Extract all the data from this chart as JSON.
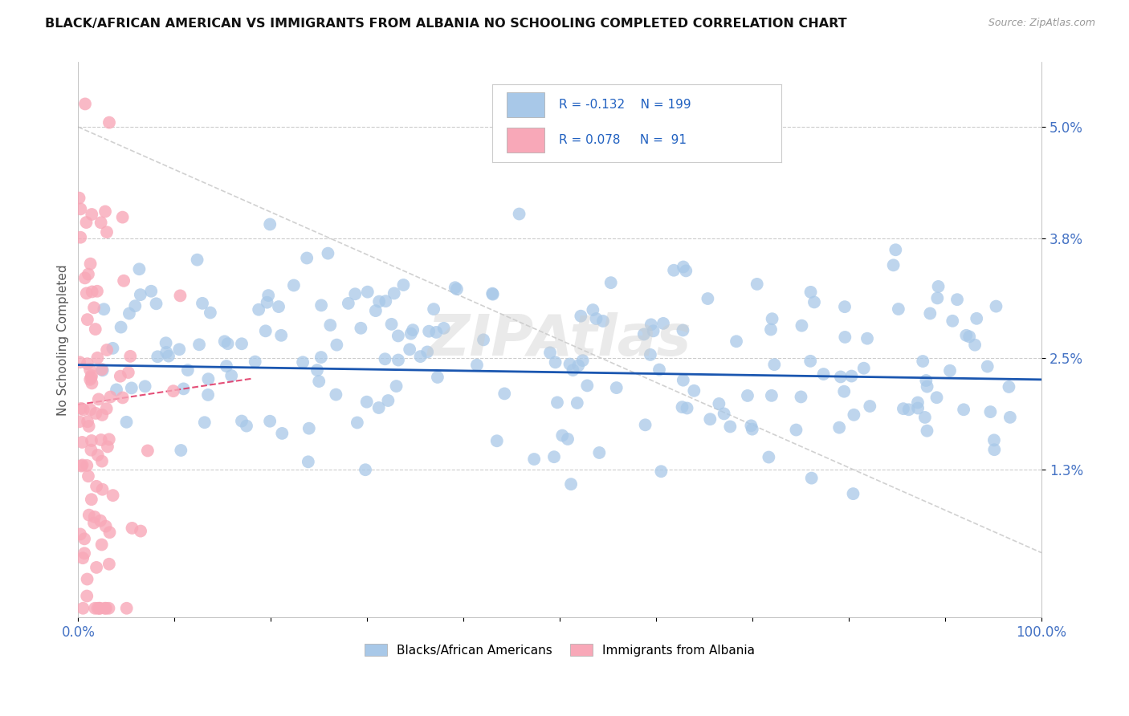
{
  "title": "BLACK/AFRICAN AMERICAN VS IMMIGRANTS FROM ALBANIA NO SCHOOLING COMPLETED CORRELATION CHART",
  "source": "Source: ZipAtlas.com",
  "ylabel": "No Schooling Completed",
  "xlabel": "",
  "xlim": [
    0.0,
    1.0
  ],
  "ylim": [
    -0.003,
    0.057
  ],
  "yticks": [
    0.013,
    0.025,
    0.038,
    0.05
  ],
  "ytick_labels": [
    "1.3%",
    "2.5%",
    "3.8%",
    "5.0%"
  ],
  "xticks": [
    0.0,
    0.1,
    0.2,
    0.3,
    0.4,
    0.5,
    0.6,
    0.7,
    0.8,
    0.9,
    1.0
  ],
  "xtick_labels": [
    "0.0%",
    "",
    "",
    "",
    "",
    "",
    "",
    "",
    "",
    "",
    "100.0%"
  ],
  "R_blue": -0.132,
  "N_blue": 199,
  "R_pink": 0.078,
  "N_pink": 91,
  "blue_color": "#a8c8e8",
  "pink_color": "#f8a8b8",
  "blue_line_color": "#1a56b0",
  "pink_line_color": "#e03060",
  "legend_blue_label": "Blacks/African Americans",
  "legend_pink_label": "Immigrants from Albania",
  "background_color": "#ffffff",
  "grid_color": "#cccccc",
  "watermark": "ZIPAtlas",
  "title_color": "#111111",
  "axis_label_color": "#555555",
  "tick_color": "#4472c4",
  "ref_line_color": "#cccccc",
  "seed_blue": 42,
  "seed_pink": 123
}
